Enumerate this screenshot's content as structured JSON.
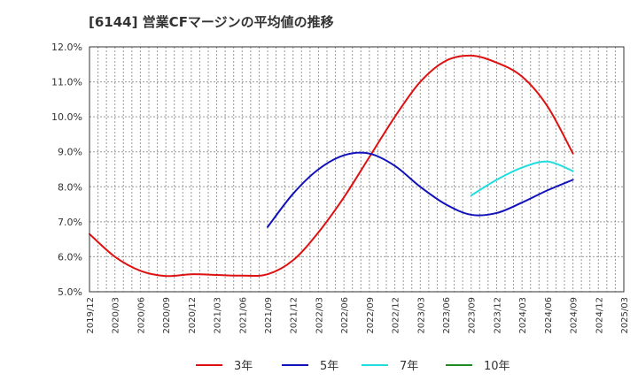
{
  "chart_data": {
    "type": "line",
    "title": "[6144]  営業CFマージンの平均値の推移",
    "ylim": [
      5.0,
      12.0
    ],
    "y_ticks": [
      "5.0%",
      "6.0%",
      "7.0%",
      "8.0%",
      "9.0%",
      "10.0%",
      "11.0%",
      "12.0%"
    ],
    "x_ticks": [
      "2019/12",
      "2020/03",
      "2020/06",
      "2020/09",
      "2020/12",
      "2021/03",
      "2021/06",
      "2021/09",
      "2021/12",
      "2022/03",
      "2022/06",
      "2022/09",
      "2022/12",
      "2023/03",
      "2023/06",
      "2023/09",
      "2023/12",
      "2024/03",
      "2024/06",
      "2024/09",
      "2024/12",
      "2025/03"
    ],
    "grid": true,
    "legend_position": "bottom",
    "series": [
      {
        "name": "3年",
        "color": "#dd1111",
        "points": [
          [
            "2019/12",
            6.65
          ],
          [
            "2020/03",
            6.0
          ],
          [
            "2020/06",
            5.6
          ],
          [
            "2020/09",
            5.45
          ],
          [
            "2020/12",
            5.5
          ],
          [
            "2021/03",
            5.48
          ],
          [
            "2021/06",
            5.46
          ],
          [
            "2021/09",
            5.5
          ],
          [
            "2021/12",
            5.9
          ],
          [
            "2022/03",
            6.7
          ],
          [
            "2022/06",
            7.7
          ],
          [
            "2022/09",
            8.85
          ],
          [
            "2022/12",
            10.0
          ],
          [
            "2023/03",
            11.0
          ],
          [
            "2023/06",
            11.6
          ],
          [
            "2023/09",
            11.75
          ],
          [
            "2023/12",
            11.55
          ],
          [
            "2024/03",
            11.15
          ],
          [
            "2024/06",
            10.3
          ],
          [
            "2024/09",
            8.95
          ]
        ]
      },
      {
        "name": "5年",
        "color": "#1111bb",
        "points": [
          [
            "2021/09",
            6.85
          ],
          [
            "2021/12",
            7.8
          ],
          [
            "2022/03",
            8.5
          ],
          [
            "2022/06",
            8.9
          ],
          [
            "2022/09",
            8.95
          ],
          [
            "2022/12",
            8.6
          ],
          [
            "2023/03",
            8.0
          ],
          [
            "2023/06",
            7.5
          ],
          [
            "2023/09",
            7.2
          ],
          [
            "2023/12",
            7.25
          ],
          [
            "2024/03",
            7.55
          ],
          [
            "2024/06",
            7.9
          ],
          [
            "2024/09",
            8.2
          ]
        ]
      },
      {
        "name": "7年",
        "color": "#22dddd",
        "points": [
          [
            "2023/09",
            7.75
          ],
          [
            "2023/12",
            8.2
          ],
          [
            "2024/03",
            8.55
          ],
          [
            "2024/06",
            8.72
          ],
          [
            "2024/09",
            8.45
          ]
        ]
      },
      {
        "name": "10年",
        "color": "#228822",
        "points": []
      }
    ]
  }
}
